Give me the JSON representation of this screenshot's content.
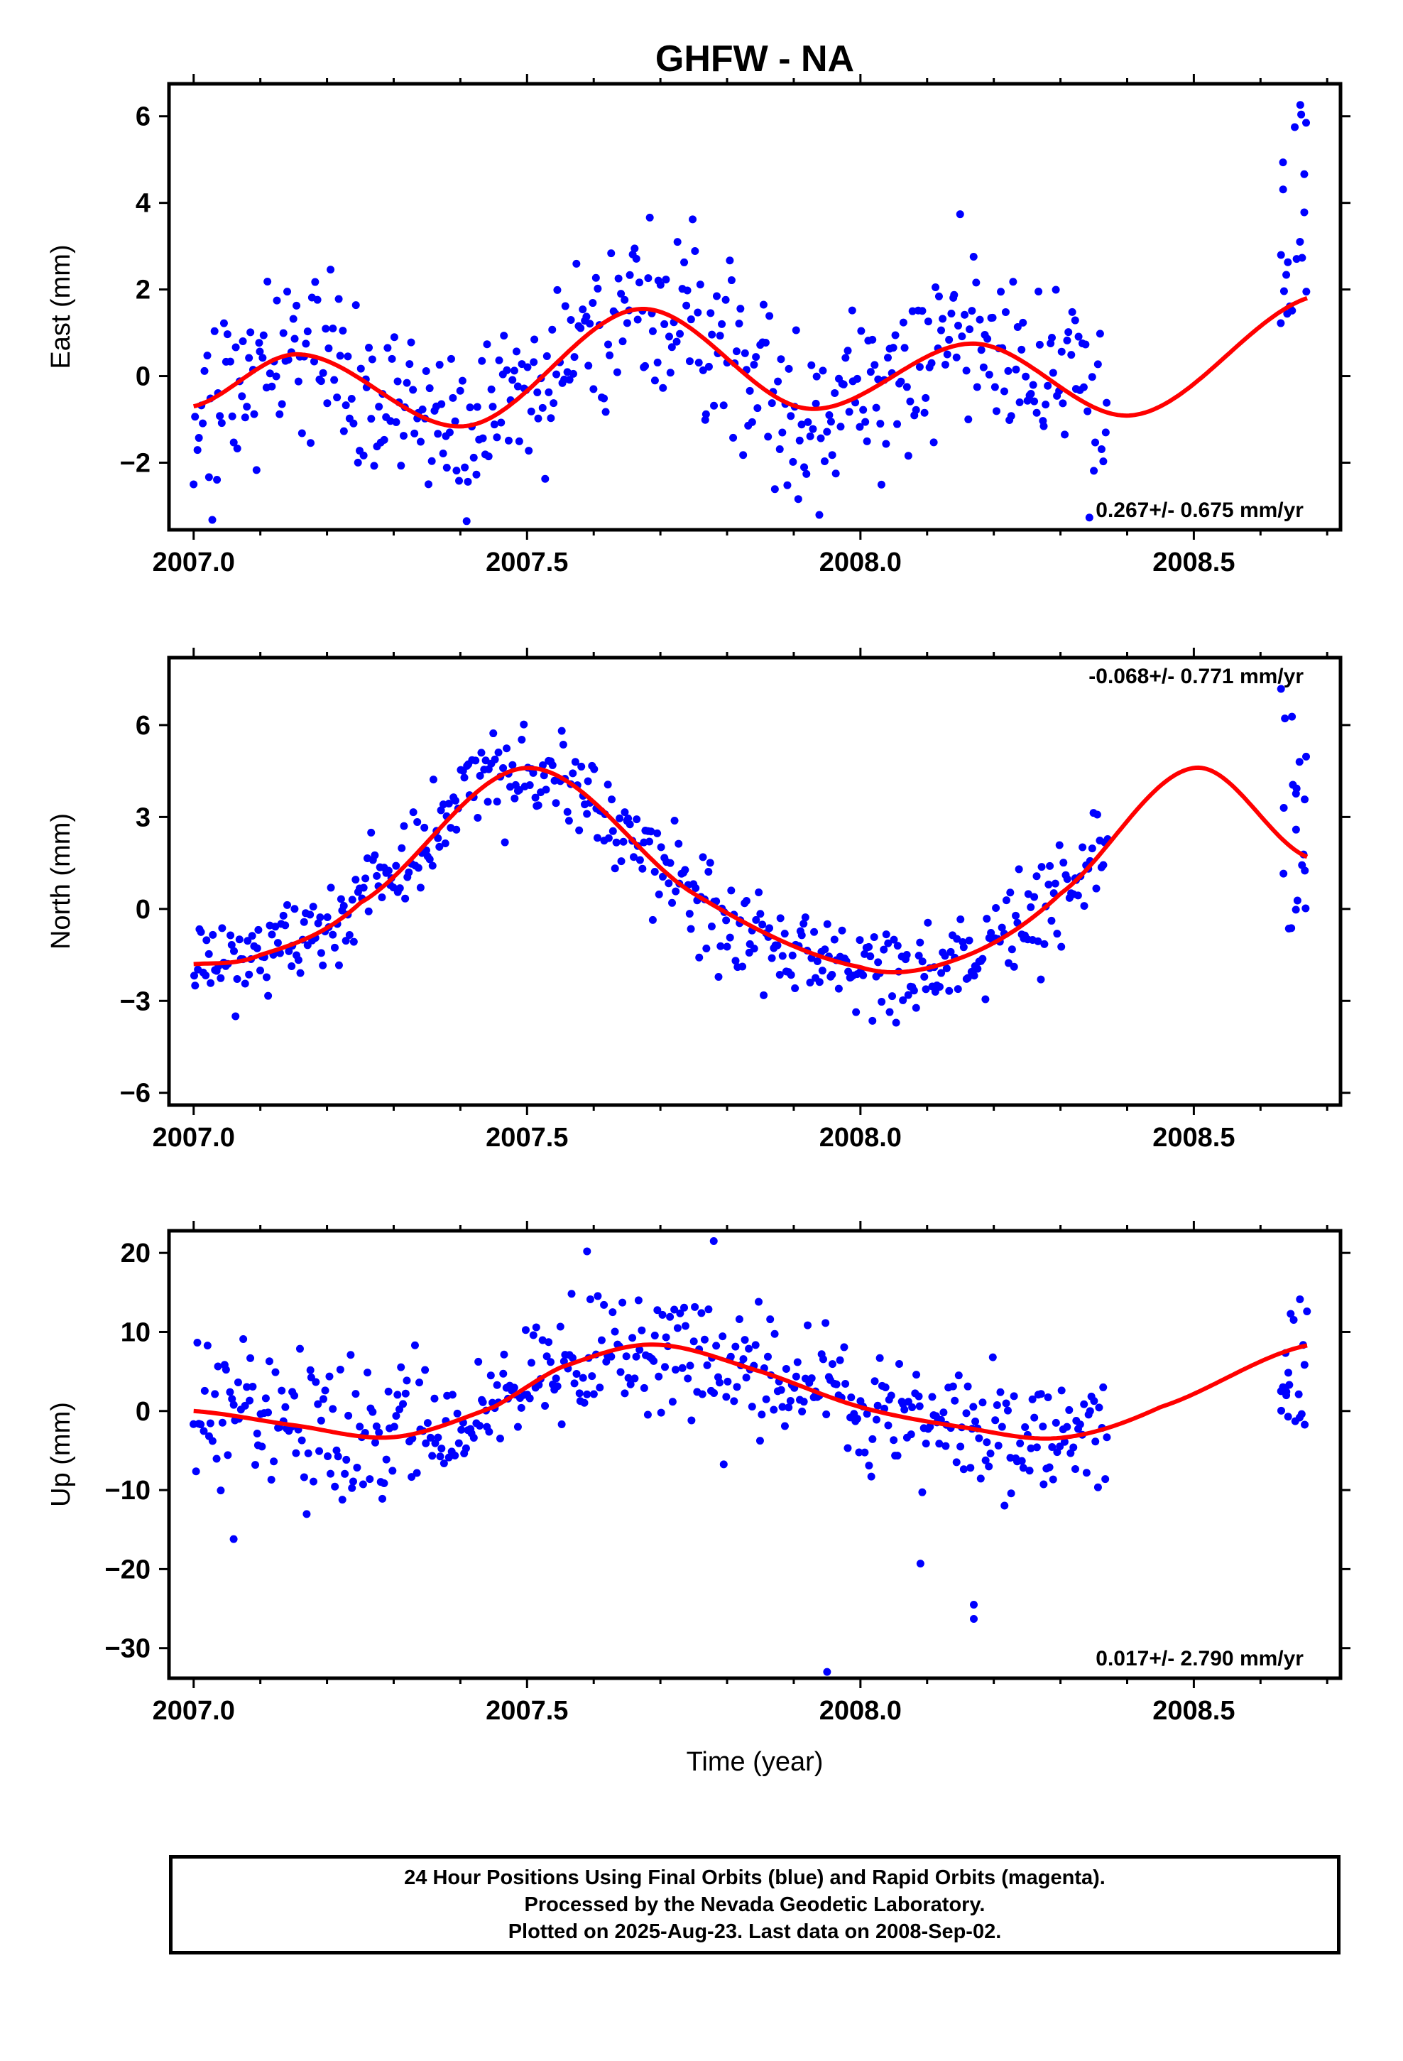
{
  "colors": {
    "final_orbits": "#0000ff",
    "model_fit": "#ff0000",
    "frame": "#000000"
  },
  "chart_data": [
    {
      "type": "scatter",
      "title": "GHFW - NA",
      "xlabel": "",
      "ylabel": "East (mm)",
      "xlim": [
        2006.963,
        2008.72
      ],
      "ylim": [
        -3.55,
        6.75
      ],
      "xticks": [
        2007.0,
        2007.5,
        2008.0,
        2008.5
      ],
      "xtick_labels": [
        "2007.0",
        "2007.5",
        "2008.0",
        "2008.5"
      ],
      "yticks": [
        -2,
        0,
        2,
        4,
        6
      ],
      "ytick_labels": [
        "−2",
        "0",
        "2",
        "4",
        "6"
      ],
      "rate": "0.267+/- 0.675 mm/yr",
      "rate_position": "bottom-right",
      "series": [
        {
          "role": "final-orbits",
          "color": "#0000ff",
          "x_start": 2007.0,
          "x_end": 2008.37,
          "n_points": 480,
          "gap_x": [
            2008.37,
            2008.63
          ],
          "late_x": [
            2008.63,
            2008.67
          ],
          "late_n": 20,
          "noise_sd": 1.0,
          "late_values_range": [
            1.0,
            6.5
          ]
        },
        {
          "role": "model-fit",
          "color": "#ff0000",
          "x": [
            2007.0,
            2007.16,
            2007.41,
            2007.67,
            2007.92,
            2008.17,
            2008.41,
            2008.67
          ],
          "y": [
            -0.7,
            0.5,
            -1.15,
            1.55,
            -0.75,
            0.75,
            -0.9,
            1.8
          ]
        }
      ]
    },
    {
      "type": "scatter",
      "title": "",
      "xlabel": "",
      "ylabel": "North (mm)",
      "xlim": [
        2006.963,
        2008.72
      ],
      "ylim": [
        -6.4,
        8.2
      ],
      "xticks": [
        2007.0,
        2007.5,
        2008.0,
        2008.5
      ],
      "xtick_labels": [
        "2007.0",
        "2007.5",
        "2008.0",
        "2008.5"
      ],
      "yticks": [
        -6,
        -3,
        0,
        3,
        6
      ],
      "ytick_labels": [
        "−6",
        "−3",
        "0",
        "3",
        "6"
      ],
      "rate": "-0.068+/- 0.771 mm/yr",
      "rate_position": "top-right",
      "series": [
        {
          "role": "final-orbits",
          "color": "#0000ff",
          "x_start": 2007.0,
          "x_end": 2008.37,
          "n_points": 480,
          "gap_x": [
            2008.37,
            2008.63
          ],
          "late_x": [
            2008.63,
            2008.67
          ],
          "late_n": 20,
          "noise_sd": 0.75,
          "late_values_range": [
            -1.5,
            7.2
          ]
        },
        {
          "role": "model-fit",
          "color": "#ff0000",
          "x": [
            2007.0,
            2007.1,
            2007.25,
            2007.5,
            2007.75,
            2008.0,
            2008.15,
            2008.3,
            2008.5,
            2008.67
          ],
          "y": [
            -1.8,
            -1.5,
            0.2,
            4.6,
            0.5,
            -1.9,
            -1.6,
            0.5,
            4.6,
            1.7
          ]
        }
      ]
    },
    {
      "type": "scatter",
      "title": "",
      "xlabel": "Time (year)",
      "ylabel": "Up (mm)",
      "xlim": [
        2006.963,
        2008.72
      ],
      "ylim": [
        -33.8,
        22.8
      ],
      "xticks": [
        2007.0,
        2007.5,
        2008.0,
        2008.5
      ],
      "xtick_labels": [
        "2007.0",
        "2007.5",
        "2008.0",
        "2008.5"
      ],
      "yticks": [
        -30,
        -20,
        -10,
        0,
        10,
        20
      ],
      "ytick_labels": [
        "−30",
        "−20",
        "−10",
        "0",
        "10",
        "20"
      ],
      "rate": "0.017+/- 2.790 mm/yr",
      "rate_position": "bottom-right",
      "series": [
        {
          "role": "final-orbits",
          "color": "#0000ff",
          "x_start": 2007.0,
          "x_end": 2008.37,
          "n_points": 480,
          "gap_x": [
            2008.37,
            2008.63
          ],
          "late_x": [
            2008.63,
            2008.67
          ],
          "late_n": 20,
          "noise_sd": 4.2,
          "late_values_range": [
            -2.5,
            14.7
          ],
          "outliers": [
            [
              2007.95,
              -33.0
            ],
            [
              2008.17,
              -26.3
            ],
            [
              2008.17,
              -24.5
            ],
            [
              2008.09,
              -19.3
            ],
            [
              2007.06,
              -16.2
            ],
            [
              2007.78,
              21.5
            ],
            [
              2007.59,
              20.2
            ]
          ]
        },
        {
          "role": "model-fit",
          "color": "#ff0000",
          "x": [
            2007.0,
            2007.15,
            2007.3,
            2007.45,
            2007.55,
            2007.69,
            2007.85,
            2008.0,
            2008.15,
            2008.3,
            2008.45,
            2008.67
          ],
          "y": [
            0.0,
            -1.8,
            -3.3,
            0.5,
            5.5,
            8.4,
            5.0,
            0.5,
            -2.0,
            -3.4,
            0.5,
            8.3
          ]
        }
      ]
    }
  ],
  "footer": {
    "line1": "24 Hour Positions Using Final Orbits (blue) and Rapid Orbits (magenta).",
    "line2": "Processed by the Nevada Geodetic Laboratory.",
    "line3": "Plotted on 2025-Aug-23. Last data on 2008-Sep-02."
  }
}
